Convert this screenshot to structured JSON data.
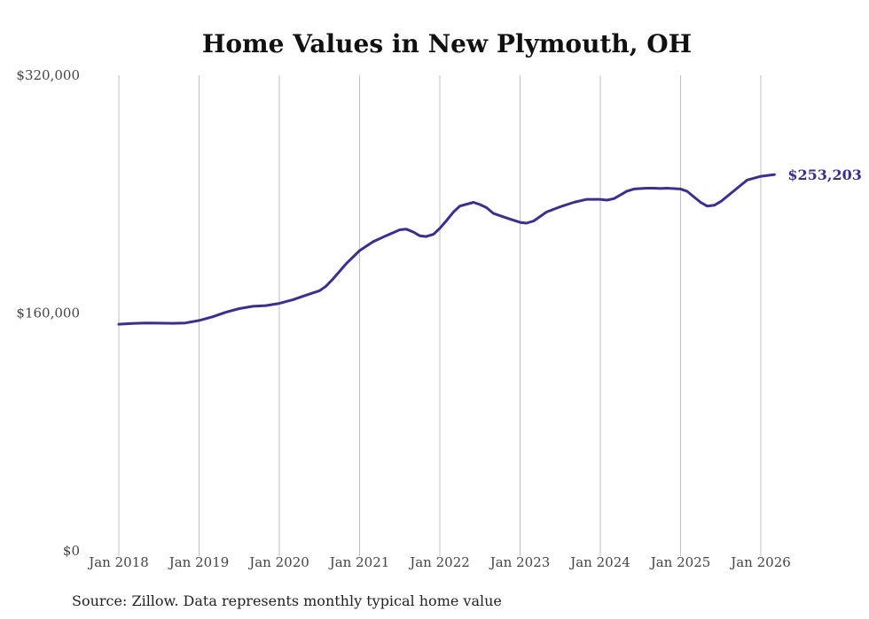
{
  "chart_data": {
    "type": "line",
    "title": "Home Values in New Plymouth, OH",
    "xlabel": "",
    "ylabel": "",
    "ylim": [
      0,
      320000
    ],
    "y_ticks": [
      {
        "value": 0,
        "label": "$0"
      },
      {
        "value": 160000,
        "label": "$160,000"
      },
      {
        "value": 320000,
        "label": "$320,000"
      }
    ],
    "x_range": [
      2018.0,
      2026.25
    ],
    "x_ticks": [
      {
        "value": 2018,
        "label": "Jan 2018"
      },
      {
        "value": 2019,
        "label": "Jan 2019"
      },
      {
        "value": 2020,
        "label": "Jan 2020"
      },
      {
        "value": 2021,
        "label": "Jan 2021"
      },
      {
        "value": 2022,
        "label": "Jan 2022"
      },
      {
        "value": 2023,
        "label": "Jan 2023"
      },
      {
        "value": 2024,
        "label": "Jan 2024"
      },
      {
        "value": 2025,
        "label": "Jan 2025"
      },
      {
        "value": 2026,
        "label": "Jan 2026"
      }
    ],
    "grid": {
      "vertical": true,
      "horizontal": false
    },
    "series": [
      {
        "name": "Typical home value",
        "color": "#3b2f8f",
        "end_label": "$253,203",
        "points": [
          [
            2018.0,
            152500
          ],
          [
            2018.17,
            153000
          ],
          [
            2018.33,
            153300
          ],
          [
            2018.5,
            153200
          ],
          [
            2018.67,
            153100
          ],
          [
            2018.83,
            153300
          ],
          [
            2019.0,
            155000
          ],
          [
            2019.17,
            157500
          ],
          [
            2019.33,
            160500
          ],
          [
            2019.5,
            163000
          ],
          [
            2019.67,
            164500
          ],
          [
            2019.83,
            165000
          ],
          [
            2020.0,
            166500
          ],
          [
            2020.17,
            169000
          ],
          [
            2020.33,
            172000
          ],
          [
            2020.5,
            175000
          ],
          [
            2020.58,
            178000
          ],
          [
            2020.67,
            183000
          ],
          [
            2020.83,
            193000
          ],
          [
            2021.0,
            202000
          ],
          [
            2021.17,
            208000
          ],
          [
            2021.33,
            212000
          ],
          [
            2021.5,
            216000
          ],
          [
            2021.58,
            216500
          ],
          [
            2021.67,
            214500
          ],
          [
            2021.75,
            212000
          ],
          [
            2021.83,
            211500
          ],
          [
            2021.92,
            213000
          ],
          [
            2022.0,
            217000
          ],
          [
            2022.08,
            222000
          ],
          [
            2022.17,
            228000
          ],
          [
            2022.25,
            232000
          ],
          [
            2022.42,
            234500
          ],
          [
            2022.5,
            233000
          ],
          [
            2022.58,
            231000
          ],
          [
            2022.67,
            227000
          ],
          [
            2022.83,
            224000
          ],
          [
            2023.0,
            221000
          ],
          [
            2023.08,
            220500
          ],
          [
            2023.17,
            222000
          ],
          [
            2023.33,
            228000
          ],
          [
            2023.5,
            231500
          ],
          [
            2023.67,
            234500
          ],
          [
            2023.83,
            236500
          ],
          [
            2024.0,
            236500
          ],
          [
            2024.08,
            236000
          ],
          [
            2024.17,
            237000
          ],
          [
            2024.33,
            242000
          ],
          [
            2024.42,
            243500
          ],
          [
            2024.58,
            244000
          ],
          [
            2024.67,
            244000
          ],
          [
            2024.75,
            243800
          ],
          [
            2024.83,
            244000
          ],
          [
            2025.0,
            243500
          ],
          [
            2025.08,
            242000
          ],
          [
            2025.17,
            238000
          ],
          [
            2025.25,
            234500
          ],
          [
            2025.33,
            232000
          ],
          [
            2025.42,
            232500
          ],
          [
            2025.5,
            235000
          ],
          [
            2025.67,
            242500
          ],
          [
            2025.83,
            249500
          ],
          [
            2026.0,
            252000
          ],
          [
            2026.17,
            253203
          ]
        ]
      }
    ]
  },
  "source_note": "Source: Zillow. Data represents monthly typical home value"
}
